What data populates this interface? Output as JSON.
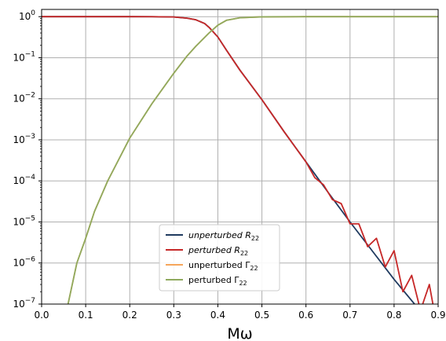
{
  "chart_data": {
    "type": "line",
    "xlabel": "Mω",
    "ylabel": "",
    "xlim": [
      0.0,
      0.9
    ],
    "ylim": [
      1e-07,
      1.5
    ],
    "yscale": "log",
    "grid": true,
    "legend_position": "lower-center",
    "x_ticks": [
      "0.0",
      "0.1",
      "0.2",
      "0.3",
      "0.4",
      "0.5",
      "0.6",
      "0.7",
      "0.8",
      "0.9"
    ],
    "y_ticks": [
      {
        "base": "10",
        "exp": "0"
      },
      {
        "base": "10",
        "exp": "−1"
      },
      {
        "base": "10",
        "exp": "−2"
      },
      {
        "base": "10",
        "exp": "−3"
      },
      {
        "base": "10",
        "exp": "−4"
      },
      {
        "base": "10",
        "exp": "−5"
      },
      {
        "base": "10",
        "exp": "−6"
      },
      {
        "base": "10",
        "exp": "−7"
      }
    ],
    "series": [
      {
        "name": "unperturbed R",
        "name_sub": "22",
        "name_style": "calligraphic",
        "color": "#1f3a5f",
        "x": [
          0.0,
          0.1,
          0.2,
          0.25,
          0.3,
          0.33,
          0.35,
          0.37,
          0.38,
          0.4,
          0.42,
          0.45,
          0.5,
          0.55,
          0.6,
          0.65,
          0.7,
          0.75,
          0.8,
          0.85,
          0.9
        ],
        "y": [
          1.0,
          1.0,
          1.0,
          0.999,
          0.98,
          0.92,
          0.84,
          0.68,
          0.55,
          0.32,
          0.15,
          0.05,
          0.0095,
          0.0016,
          0.00029,
          5.3e-05,
          1e-05,
          2e-06,
          4e-07,
          9e-08,
          2.2e-08
        ]
      },
      {
        "name": "perturbed R",
        "name_sub": "22",
        "name_style": "calligraphic",
        "color": "#c62828",
        "x": [
          0.0,
          0.1,
          0.2,
          0.25,
          0.3,
          0.33,
          0.35,
          0.37,
          0.38,
          0.4,
          0.42,
          0.45,
          0.5,
          0.55,
          0.6,
          0.62,
          0.64,
          0.66,
          0.68,
          0.7,
          0.72,
          0.74,
          0.76,
          0.78,
          0.8,
          0.82,
          0.84,
          0.86,
          0.88,
          0.9
        ],
        "y": [
          1.0,
          1.0,
          1.0,
          0.999,
          0.98,
          0.92,
          0.84,
          0.68,
          0.55,
          0.32,
          0.15,
          0.05,
          0.0095,
          0.0016,
          0.00029,
          0.00012,
          8e-05,
          3.5e-05,
          2.8e-05,
          9e-06,
          9e-06,
          2.5e-06,
          4e-06,
          8e-07,
          2e-06,
          2e-07,
          5e-07,
          7e-08,
          3e-07,
          2e-08
        ]
      },
      {
        "name": "unperturbed Γ",
        "name_sub": "22",
        "name_style": "normal",
        "color": "#f5a55a",
        "x": [
          0.06,
          0.08,
          0.1,
          0.12,
          0.15,
          0.2,
          0.25,
          0.3,
          0.33,
          0.35,
          0.38,
          0.4,
          0.42,
          0.45,
          0.5,
          0.6,
          0.7,
          0.8,
          0.9
        ],
        "y": [
          1e-07,
          1e-06,
          4e-06,
          1.8e-05,
          0.0001,
          0.0011,
          0.0075,
          0.042,
          0.11,
          0.19,
          0.4,
          0.62,
          0.82,
          0.94,
          0.99,
          1.0,
          1.0,
          1.0,
          1.0
        ]
      },
      {
        "name": "perturbed Γ",
        "name_sub": "22",
        "name_style": "normal",
        "color": "#8faa5e",
        "x": [
          0.06,
          0.08,
          0.1,
          0.12,
          0.15,
          0.2,
          0.25,
          0.3,
          0.33,
          0.35,
          0.38,
          0.4,
          0.42,
          0.45,
          0.5,
          0.6,
          0.7,
          0.8,
          0.9
        ],
        "y": [
          1e-07,
          1e-06,
          4e-06,
          1.8e-05,
          0.0001,
          0.0011,
          0.0075,
          0.042,
          0.11,
          0.19,
          0.4,
          0.62,
          0.82,
          0.94,
          0.99,
          1.0,
          1.0,
          1.0,
          1.0
        ]
      }
    ]
  }
}
